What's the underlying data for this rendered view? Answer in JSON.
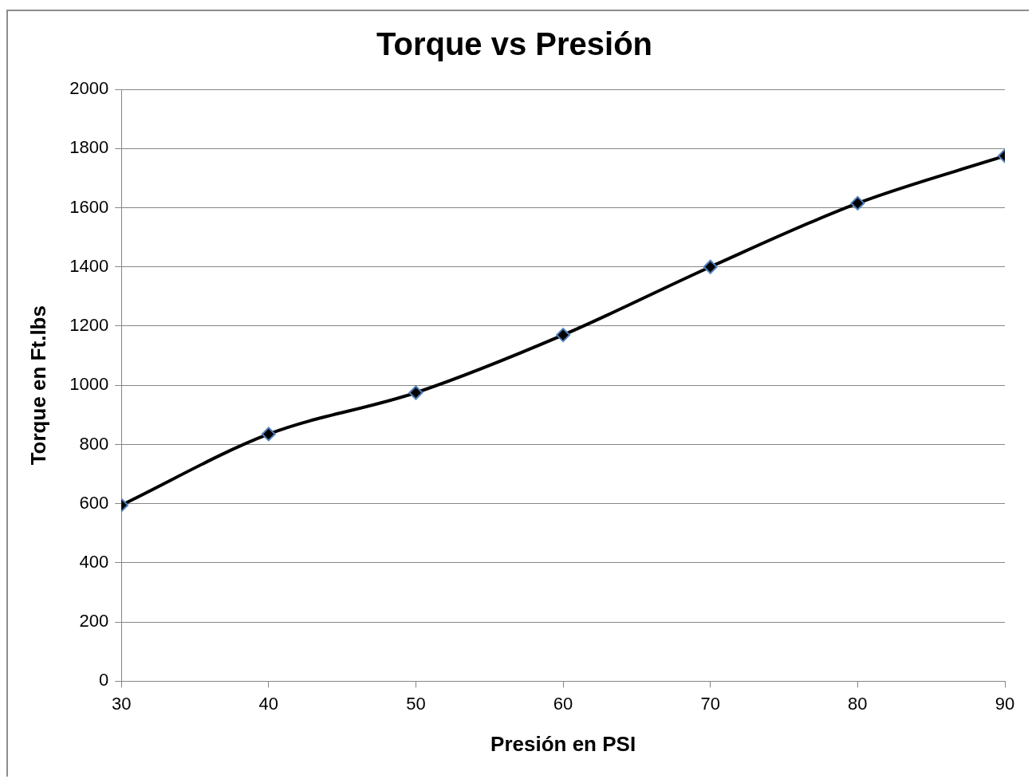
{
  "chart_data": {
    "type": "line",
    "title": "Torque vs Presión",
    "xlabel": "Presión en PSI",
    "ylabel": "Torque en Ft.lbs",
    "x": [
      30,
      40,
      50,
      60,
      70,
      80,
      90
    ],
    "series": [
      {
        "color": "#000000",
        "values": [
          595,
          835,
          975,
          1170,
          1400,
          1615,
          1775
        ]
      }
    ],
    "xlim": [
      30,
      90
    ],
    "xticks": [
      30,
      40,
      50,
      60,
      70,
      80,
      90
    ],
    "ylim": [
      0,
      2000
    ],
    "yticks": [
      0,
      200,
      400,
      600,
      800,
      1000,
      1200,
      1400,
      1600,
      1800,
      2000
    ],
    "grid": "y",
    "marker": "diamond",
    "line_style": "solid"
  }
}
